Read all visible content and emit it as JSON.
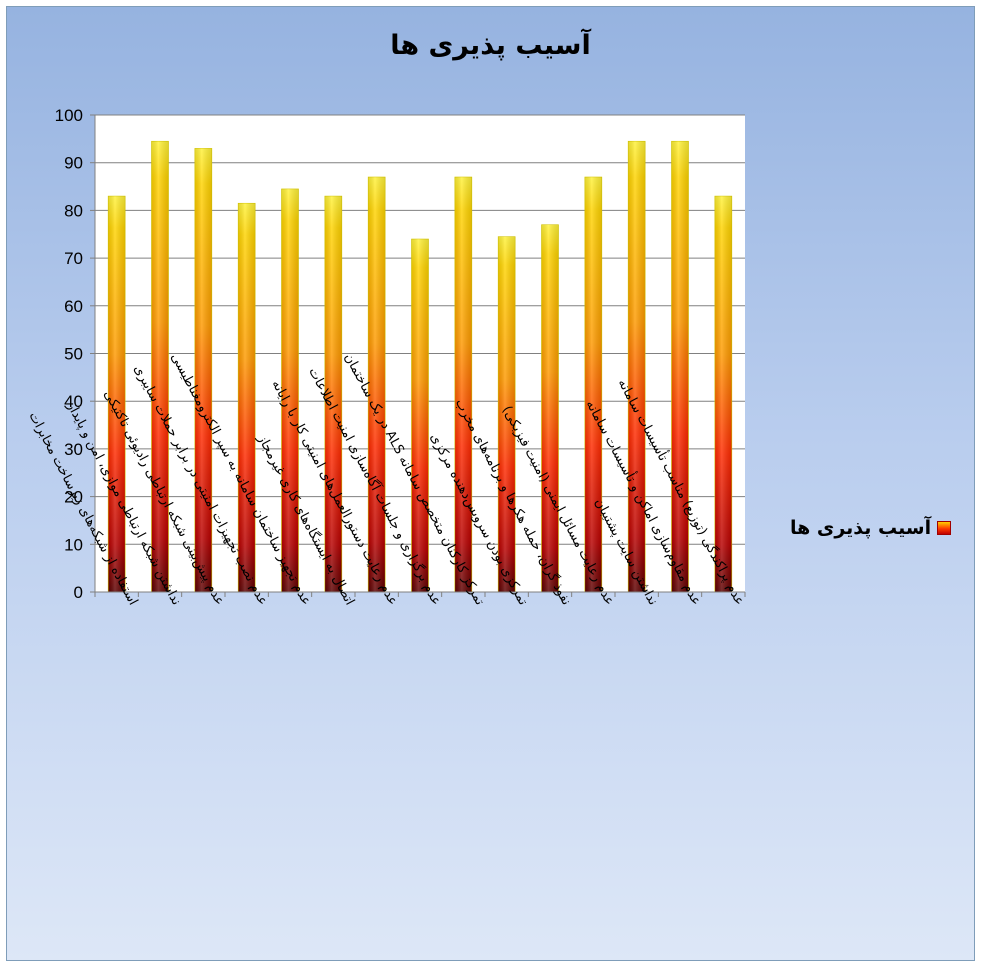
{
  "chart_data": {
    "type": "bar",
    "title": "آسیب پذیری ها",
    "xlabel": "",
    "ylabel": "",
    "ylim": [
      0,
      100
    ],
    "yticks": [
      0,
      10,
      20,
      30,
      40,
      50,
      60,
      70,
      80,
      90,
      100
    ],
    "grid": true,
    "legend_position": "right",
    "categories": [
      "استفاده از شبکه‌های زیرساخت مخابرات",
      "نداشتن شبکه ارتباطی موازی، امن و پایدار",
      "عدم پیش‌بینی شبکه ارتباطی رادیوئی تاکتیکی",
      "عدم نصب تجهیزات امنیتی در برابر حملات سایبری",
      "عدم تجهیز ساختمان سامانه به سپر الکترومغناطیسی",
      "اتصال به ایستگاه‌های کاری غیرمجاز",
      "عدم رعایت دستورالعمل‌های امنیتی کار با رایانه",
      "عدم برگزاری و جلسات آگاه‌سازی امنیت اطلاعات",
      "تمرکز کارکنان متخصص سامانه ALS در یک ساختمان",
      "تمرکزی بودن سرویس‌دهنده مرکزی",
      "نفوذ گران، حمله هکرها و برنامه‌های مخرب",
      "عدم رعایت مسائل ایمنی (امنیت فیزیکی)",
      "نداشتن سایت پشتیبان",
      "عدم مقاوم‌سازی اماکن و تأسیسات سامانه",
      "عدم پراکندگی (توزیع) مناسب تأسیسات سامانه"
    ],
    "series": [
      {
        "name": "آسیب پذیری ها",
        "values": [
          83,
          94.5,
          93,
          81.5,
          84.5,
          83,
          87,
          74,
          87,
          74.5,
          77,
          87,
          94.5,
          94.5,
          83
        ]
      }
    ],
    "colors": {
      "top": "#ffe000",
      "mid": "#ff4a00",
      "bottom": "#6a0000",
      "grid": "#808080"
    }
  }
}
